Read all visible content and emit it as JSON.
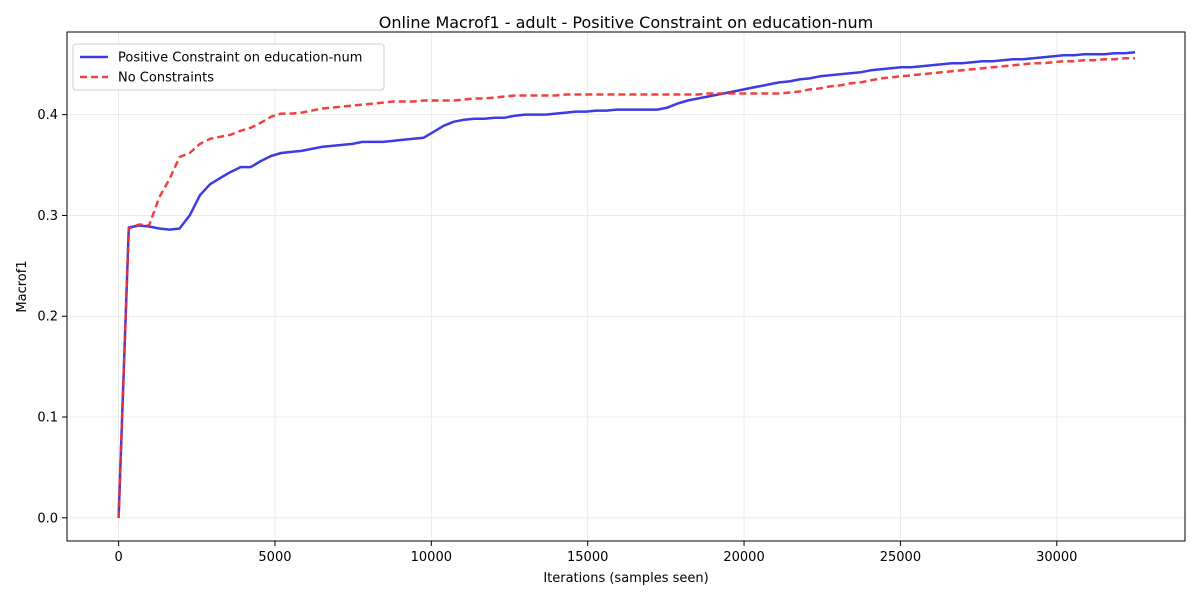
{
  "chart_data": {
    "type": "line",
    "title": "Online Macrof1 - adult - Positive Constraint on education-num",
    "xlabel": "Iterations (samples seen)",
    "ylabel": "Macrof1",
    "xlim": [
      -1650,
      34100
    ],
    "ylim": [
      -0.023,
      0.482
    ],
    "xticks": [
      0,
      5000,
      10000,
      15000,
      20000,
      25000,
      30000
    ],
    "yticks": [
      0.0,
      0.1,
      0.2,
      0.3,
      0.4
    ],
    "xtick_labels": [
      "0",
      "5000",
      "10000",
      "15000",
      "20000",
      "25000",
      "30000"
    ],
    "ytick_labels": [
      "0.0",
      "0.1",
      "0.2",
      "0.3",
      "0.4"
    ],
    "grid": true,
    "legend_position": "top-left",
    "series": [
      {
        "name": "Positive Constraint on education-num",
        "color": "#2b2be0",
        "style": "solid",
        "points": [
          [
            0,
            0.0
          ],
          [
            325,
            0.288
          ],
          [
            650,
            0.29
          ],
          [
            975,
            0.289
          ],
          [
            1300,
            0.287
          ],
          [
            1625,
            0.286
          ],
          [
            1950,
            0.287
          ],
          [
            2275,
            0.3
          ],
          [
            2600,
            0.32
          ],
          [
            2925,
            0.331
          ],
          [
            3250,
            0.337
          ],
          [
            3575,
            0.343
          ],
          [
            3900,
            0.348
          ],
          [
            4225,
            0.348
          ],
          [
            4550,
            0.354
          ],
          [
            4875,
            0.359
          ],
          [
            5200,
            0.362
          ],
          [
            5525,
            0.363
          ],
          [
            5850,
            0.364
          ],
          [
            6175,
            0.366
          ],
          [
            6500,
            0.368
          ],
          [
            6825,
            0.369
          ],
          [
            7150,
            0.37
          ],
          [
            7475,
            0.371
          ],
          [
            7800,
            0.373
          ],
          [
            8125,
            0.373
          ],
          [
            8450,
            0.373
          ],
          [
            8775,
            0.374
          ],
          [
            9100,
            0.375
          ],
          [
            9425,
            0.376
          ],
          [
            9750,
            0.377
          ],
          [
            10075,
            0.383
          ],
          [
            10400,
            0.389
          ],
          [
            10725,
            0.393
          ],
          [
            11050,
            0.395
          ],
          [
            11375,
            0.396
          ],
          [
            11700,
            0.396
          ],
          [
            12025,
            0.397
          ],
          [
            12350,
            0.397
          ],
          [
            12675,
            0.399
          ],
          [
            13000,
            0.4
          ],
          [
            13325,
            0.4
          ],
          [
            13650,
            0.4
          ],
          [
            13975,
            0.401
          ],
          [
            14300,
            0.402
          ],
          [
            14625,
            0.403
          ],
          [
            14950,
            0.403
          ],
          [
            15275,
            0.404
          ],
          [
            15600,
            0.404
          ],
          [
            15925,
            0.405
          ],
          [
            16250,
            0.405
          ],
          [
            16575,
            0.405
          ],
          [
            16900,
            0.405
          ],
          [
            17225,
            0.405
          ],
          [
            17550,
            0.407
          ],
          [
            17875,
            0.411
          ],
          [
            18200,
            0.414
          ],
          [
            18525,
            0.416
          ],
          [
            18850,
            0.418
          ],
          [
            19175,
            0.42
          ],
          [
            19500,
            0.422
          ],
          [
            19825,
            0.424
          ],
          [
            20150,
            0.426
          ],
          [
            20475,
            0.428
          ],
          [
            20800,
            0.43
          ],
          [
            21125,
            0.432
          ],
          [
            21450,
            0.433
          ],
          [
            21775,
            0.435
          ],
          [
            22100,
            0.436
          ],
          [
            22425,
            0.438
          ],
          [
            22750,
            0.439
          ],
          [
            23075,
            0.44
          ],
          [
            23400,
            0.441
          ],
          [
            23725,
            0.442
          ],
          [
            24050,
            0.444
          ],
          [
            24375,
            0.445
          ],
          [
            24700,
            0.446
          ],
          [
            25025,
            0.447
          ],
          [
            25350,
            0.447
          ],
          [
            25675,
            0.448
          ],
          [
            26000,
            0.449
          ],
          [
            26325,
            0.45
          ],
          [
            26650,
            0.451
          ],
          [
            26975,
            0.451
          ],
          [
            27300,
            0.452
          ],
          [
            27625,
            0.453
          ],
          [
            27950,
            0.453
          ],
          [
            28275,
            0.454
          ],
          [
            28600,
            0.455
          ],
          [
            28925,
            0.455
          ],
          [
            29250,
            0.456
          ],
          [
            29575,
            0.457
          ],
          [
            29900,
            0.458
          ],
          [
            30225,
            0.459
          ],
          [
            30550,
            0.459
          ],
          [
            30875,
            0.46
          ],
          [
            31200,
            0.46
          ],
          [
            31525,
            0.46
          ],
          [
            31850,
            0.461
          ],
          [
            32175,
            0.461
          ],
          [
            32500,
            0.462
          ]
        ]
      },
      {
        "name": "No Constraints",
        "color": "#f03030",
        "style": "dashed",
        "points": [
          [
            0,
            0.0
          ],
          [
            325,
            0.287
          ],
          [
            650,
            0.291
          ],
          [
            975,
            0.29
          ],
          [
            1300,
            0.318
          ],
          [
            1625,
            0.336
          ],
          [
            1950,
            0.358
          ],
          [
            2275,
            0.362
          ],
          [
            2600,
            0.371
          ],
          [
            2925,
            0.376
          ],
          [
            3250,
            0.378
          ],
          [
            3575,
            0.38
          ],
          [
            3900,
            0.384
          ],
          [
            4225,
            0.387
          ],
          [
            4550,
            0.392
          ],
          [
            4875,
            0.398
          ],
          [
            5200,
            0.401
          ],
          [
            5525,
            0.401
          ],
          [
            5850,
            0.402
          ],
          [
            6175,
            0.404
          ],
          [
            6500,
            0.406
          ],
          [
            6825,
            0.407
          ],
          [
            7150,
            0.408
          ],
          [
            7475,
            0.409
          ],
          [
            7800,
            0.41
          ],
          [
            8125,
            0.411
          ],
          [
            8450,
            0.412
          ],
          [
            8775,
            0.413
          ],
          [
            9100,
            0.413
          ],
          [
            9425,
            0.413
          ],
          [
            9750,
            0.414
          ],
          [
            10075,
            0.414
          ],
          [
            10400,
            0.414
          ],
          [
            10725,
            0.414
          ],
          [
            11050,
            0.415
          ],
          [
            11375,
            0.416
          ],
          [
            11700,
            0.416
          ],
          [
            12025,
            0.417
          ],
          [
            12350,
            0.418
          ],
          [
            12675,
            0.419
          ],
          [
            13000,
            0.419
          ],
          [
            13325,
            0.419
          ],
          [
            13650,
            0.419
          ],
          [
            13975,
            0.419
          ],
          [
            14300,
            0.42
          ],
          [
            14625,
            0.42
          ],
          [
            14950,
            0.42
          ],
          [
            15275,
            0.42
          ],
          [
            15600,
            0.42
          ],
          [
            15925,
            0.42
          ],
          [
            16250,
            0.42
          ],
          [
            16575,
            0.42
          ],
          [
            16900,
            0.42
          ],
          [
            17225,
            0.42
          ],
          [
            17550,
            0.42
          ],
          [
            17875,
            0.42
          ],
          [
            18200,
            0.42
          ],
          [
            18525,
            0.42
          ],
          [
            18850,
            0.421
          ],
          [
            19175,
            0.421
          ],
          [
            19500,
            0.421
          ],
          [
            19825,
            0.421
          ],
          [
            20150,
            0.421
          ],
          [
            20475,
            0.421
          ],
          [
            20800,
            0.421
          ],
          [
            21125,
            0.421
          ],
          [
            21450,
            0.422
          ],
          [
            21775,
            0.423
          ],
          [
            22100,
            0.425
          ],
          [
            22425,
            0.426
          ],
          [
            22750,
            0.428
          ],
          [
            23075,
            0.429
          ],
          [
            23400,
            0.431
          ],
          [
            23725,
            0.432
          ],
          [
            24050,
            0.434
          ],
          [
            24375,
            0.436
          ],
          [
            24700,
            0.437
          ],
          [
            25025,
            0.438
          ],
          [
            25350,
            0.439
          ],
          [
            25675,
            0.44
          ],
          [
            26000,
            0.441
          ],
          [
            26325,
            0.442
          ],
          [
            26650,
            0.443
          ],
          [
            26975,
            0.444
          ],
          [
            27300,
            0.445
          ],
          [
            27625,
            0.446
          ],
          [
            27950,
            0.447
          ],
          [
            28275,
            0.448
          ],
          [
            28600,
            0.449
          ],
          [
            28925,
            0.45
          ],
          [
            29250,
            0.451
          ],
          [
            29575,
            0.451
          ],
          [
            29900,
            0.452
          ],
          [
            30225,
            0.453
          ],
          [
            30550,
            0.453
          ],
          [
            30875,
            0.454
          ],
          [
            31200,
            0.454
          ],
          [
            31525,
            0.455
          ],
          [
            31850,
            0.455
          ],
          [
            32175,
            0.456
          ],
          [
            32500,
            0.456
          ]
        ]
      }
    ]
  }
}
